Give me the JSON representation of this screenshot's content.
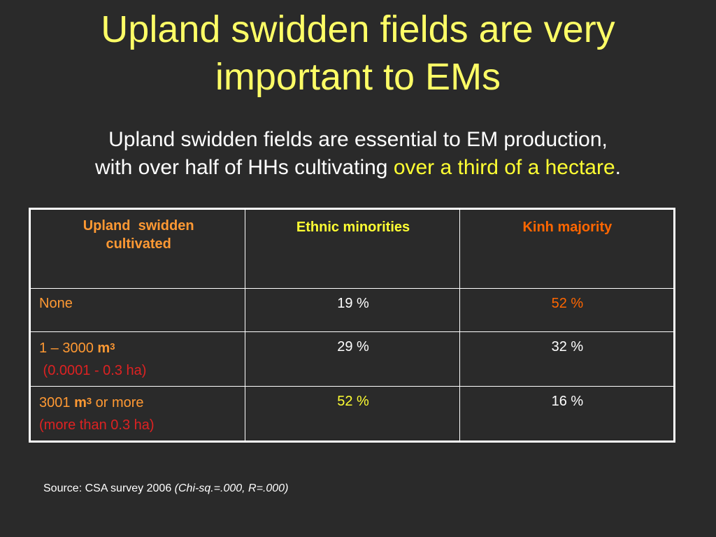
{
  "slide": {
    "title_line1": "Upland swidden fields are very",
    "title_line2": "important to EMs",
    "subtitle_line1": "Upland swidden fields are essential to EM production,",
    "subtitle_line2_pre": "with over half of HHs cultivating ",
    "subtitle_line2_highlight": "over a third of a hectare",
    "subtitle_line2_post": "."
  },
  "table": {
    "headers": {
      "col1_line1": "Upland  swidden",
      "col1_line2": "cultivated",
      "col2": "Ethnic minorities",
      "col3": "Kinh majority"
    },
    "rows": [
      {
        "label": "None",
        "em": "19 %",
        "kinh": "52 %"
      },
      {
        "label_pre": "1 – 3000 ",
        "label_unit": "m",
        "label_sup": "3",
        "label_sub": " (0.0001 - 0.3 ha)",
        "em": "29 %",
        "kinh": "32 %"
      },
      {
        "label_pre": "3001 ",
        "label_unit": "m",
        "label_sup": "3",
        "label_post": " or more",
        "label_sub": "(more than 0.3 ha)",
        "em": "52 %",
        "kinh": "16 %"
      }
    ]
  },
  "source": {
    "text": "Source: CSA survey 2006 ",
    "stats": "(Chi-sq.=.000, R=.000)"
  },
  "colors": {
    "background": "#2a2a2a",
    "title": "#ffff66",
    "highlight_yellow": "#ffff33",
    "orange": "#ff9933",
    "deep_orange": "#ff6600",
    "red": "#dd2222"
  }
}
